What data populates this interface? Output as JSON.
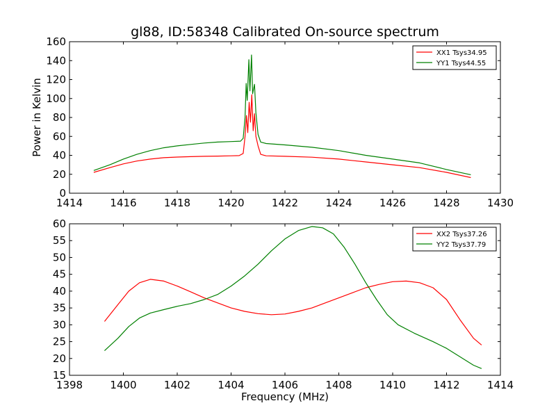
{
  "chart_data": [
    {
      "type": "line",
      "title": "gl88, ID:58348 Calibrated On-source spectrum",
      "xlabel": "",
      "ylabel": "Power in Kelvin",
      "xlim": [
        1414,
        1430
      ],
      "ylim": [
        0,
        160
      ],
      "xticks": [
        1414,
        1416,
        1418,
        1420,
        1422,
        1424,
        1426,
        1428,
        1430
      ],
      "yticks": [
        0,
        20,
        40,
        60,
        80,
        100,
        120,
        140,
        160
      ],
      "grid": false,
      "legend_position": "top-right",
      "series": [
        {
          "name": "XX1 Tsys34.95",
          "color": "#ff0000",
          "points": [
            [
              1414.9,
              22
            ],
            [
              1415.5,
              27
            ],
            [
              1416.0,
              31
            ],
            [
              1416.5,
              34
            ],
            [
              1417.0,
              36
            ],
            [
              1417.5,
              37.5
            ],
            [
              1418.0,
              38.2
            ],
            [
              1418.5,
              38.6
            ],
            [
              1419.0,
              39
            ],
            [
              1419.5,
              39.2
            ],
            [
              1420.0,
              39.5
            ],
            [
              1420.3,
              39.7
            ],
            [
              1420.45,
              42
            ],
            [
              1420.52,
              60
            ],
            [
              1420.57,
              82
            ],
            [
              1420.62,
              64
            ],
            [
              1420.67,
              96
            ],
            [
              1420.72,
              75
            ],
            [
              1420.77,
              104
            ],
            [
              1420.82,
              66
            ],
            [
              1420.87,
              84
            ],
            [
              1420.92,
              60
            ],
            [
              1421.0,
              50
            ],
            [
              1421.1,
              41
            ],
            [
              1421.3,
              39.5
            ],
            [
              1422.0,
              39
            ],
            [
              1423.0,
              38
            ],
            [
              1424.0,
              36
            ],
            [
              1425.0,
              33
            ],
            [
              1426.0,
              30
            ],
            [
              1427.0,
              27
            ],
            [
              1428.0,
              22
            ],
            [
              1428.9,
              16.5
            ]
          ]
        },
        {
          "name": "YY1 Tsys44.55",
          "color": "#008000",
          "points": [
            [
              1414.9,
              24
            ],
            [
              1415.5,
              30
            ],
            [
              1416.0,
              36
            ],
            [
              1416.5,
              41
            ],
            [
              1417.0,
              45
            ],
            [
              1417.5,
              48
            ],
            [
              1418.0,
              50
            ],
            [
              1418.5,
              51.5
            ],
            [
              1419.0,
              53
            ],
            [
              1419.5,
              54
            ],
            [
              1420.0,
              54.5
            ],
            [
              1420.35,
              55
            ],
            [
              1420.45,
              58
            ],
            [
              1420.52,
              80
            ],
            [
              1420.56,
              116
            ],
            [
              1420.6,
              98
            ],
            [
              1420.66,
              141
            ],
            [
              1420.7,
              108
            ],
            [
              1420.76,
              146
            ],
            [
              1420.8,
              105
            ],
            [
              1420.87,
              115
            ],
            [
              1420.92,
              85
            ],
            [
              1421.0,
              62
            ],
            [
              1421.1,
              54
            ],
            [
              1421.3,
              52.5
            ],
            [
              1422.0,
              51
            ],
            [
              1423.0,
              48.5
            ],
            [
              1424.0,
              45
            ],
            [
              1425.0,
              40
            ],
            [
              1426.0,
              36
            ],
            [
              1427.0,
              32
            ],
            [
              1428.0,
              25
            ],
            [
              1428.9,
              19.5
            ]
          ]
        }
      ]
    },
    {
      "type": "line",
      "title": "",
      "xlabel": "Frequency (MHz)",
      "ylabel": "",
      "xlim": [
        1398,
        1414
      ],
      "ylim": [
        15,
        60
      ],
      "xticks": [
        1398,
        1400,
        1402,
        1404,
        1406,
        1408,
        1410,
        1412,
        1414
      ],
      "yticks": [
        15,
        20,
        25,
        30,
        35,
        40,
        45,
        50,
        55,
        60
      ],
      "grid": false,
      "legend_position": "top-right",
      "series": [
        {
          "name": "XX2 Tsys37.26",
          "color": "#ff0000",
          "points": [
            [
              1399.3,
              31
            ],
            [
              1399.8,
              36
            ],
            [
              1400.2,
              40
            ],
            [
              1400.6,
              42.5
            ],
            [
              1401.0,
              43.5
            ],
            [
              1401.5,
              43
            ],
            [
              1402.0,
              41.5
            ],
            [
              1402.5,
              39.8
            ],
            [
              1403.0,
              38
            ],
            [
              1403.5,
              36.5
            ],
            [
              1404.0,
              35
            ],
            [
              1404.5,
              34
            ],
            [
              1405.0,
              33.3
            ],
            [
              1405.5,
              33
            ],
            [
              1406.0,
              33.2
            ],
            [
              1406.5,
              34
            ],
            [
              1407.0,
              35
            ],
            [
              1407.5,
              36.5
            ],
            [
              1408.0,
              38
            ],
            [
              1408.5,
              39.5
            ],
            [
              1409.0,
              41
            ],
            [
              1409.5,
              42
            ],
            [
              1410.0,
              42.8
            ],
            [
              1410.5,
              43
            ],
            [
              1411.0,
              42.5
            ],
            [
              1411.5,
              41
            ],
            [
              1412.0,
              37.5
            ],
            [
              1412.5,
              31.5
            ],
            [
              1413.0,
              26
            ],
            [
              1413.3,
              24
            ]
          ]
        },
        {
          "name": "YY2 Tsys37.79",
          "color": "#008000",
          "points": [
            [
              1399.3,
              22.3
            ],
            [
              1399.8,
              26
            ],
            [
              1400.2,
              29.5
            ],
            [
              1400.6,
              32
            ],
            [
              1401.0,
              33.5
            ],
            [
              1401.5,
              34.5
            ],
            [
              1402.0,
              35.5
            ],
            [
              1402.5,
              36.3
            ],
            [
              1403.0,
              37.5
            ],
            [
              1403.5,
              39
            ],
            [
              1404.0,
              41.5
            ],
            [
              1404.5,
              44.5
            ],
            [
              1405.0,
              48
            ],
            [
              1405.5,
              52
            ],
            [
              1406.0,
              55.5
            ],
            [
              1406.5,
              58
            ],
            [
              1407.0,
              59.2
            ],
            [
              1407.4,
              58.8
            ],
            [
              1407.8,
              57
            ],
            [
              1408.2,
              53
            ],
            [
              1408.6,
              48
            ],
            [
              1409.0,
              42.5
            ],
            [
              1409.4,
              37.5
            ],
            [
              1409.8,
              33
            ],
            [
              1410.2,
              30
            ],
            [
              1410.8,
              27.5
            ],
            [
              1411.5,
              25
            ],
            [
              1412.0,
              23
            ],
            [
              1412.5,
              20.5
            ],
            [
              1413.0,
              18
            ],
            [
              1413.3,
              17
            ]
          ]
        }
      ]
    }
  ]
}
